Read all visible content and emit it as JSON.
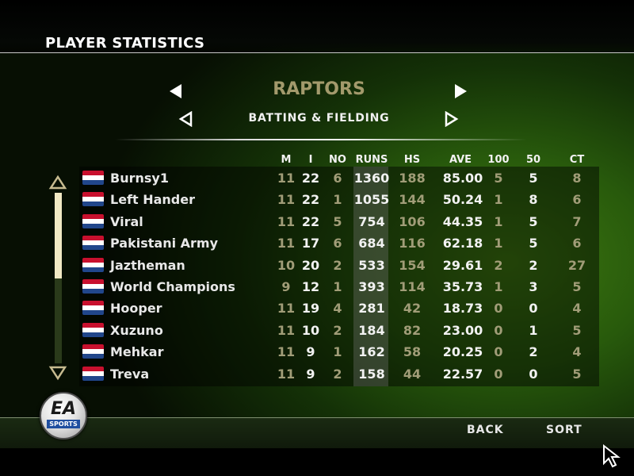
{
  "header": {
    "title": "PLAYER STATISTICS"
  },
  "team": {
    "name": "RAPTORS"
  },
  "category": {
    "label": "BATTING & FIELDING"
  },
  "columns": [
    "M",
    "I",
    "NO",
    "RUNS",
    "HS",
    "AVE",
    "100",
    "50",
    "CT"
  ],
  "players": [
    {
      "name": "Burnsy1",
      "m": "11",
      "i": "22",
      "no": "6",
      "runs": "1360",
      "hs": "188",
      "ave": "85.00",
      "h100": "5",
      "h50": "5",
      "ct": "8"
    },
    {
      "name": "Left Hander",
      "m": "11",
      "i": "22",
      "no": "1",
      "runs": "1055",
      "hs": "144",
      "ave": "50.24",
      "h100": "1",
      "h50": "8",
      "ct": "6"
    },
    {
      "name": "Viral",
      "m": "11",
      "i": "22",
      "no": "5",
      "runs": "754",
      "hs": "106",
      "ave": "44.35",
      "h100": "1",
      "h50": "5",
      "ct": "7"
    },
    {
      "name": "Pakistani Army",
      "m": "11",
      "i": "17",
      "no": "6",
      "runs": "684",
      "hs": "116",
      "ave": "62.18",
      "h100": "1",
      "h50": "5",
      "ct": "6"
    },
    {
      "name": "Jaztheman",
      "m": "10",
      "i": "20",
      "no": "2",
      "runs": "533",
      "hs": "154",
      "ave": "29.61",
      "h100": "2",
      "h50": "2",
      "ct": "27"
    },
    {
      "name": "World Champions",
      "m": "9",
      "i": "12",
      "no": "1",
      "runs": "393",
      "hs": "114",
      "ave": "35.73",
      "h100": "1",
      "h50": "3",
      "ct": "5"
    },
    {
      "name": "Hooper",
      "m": "11",
      "i": "19",
      "no": "4",
      "runs": "281",
      "hs": "42",
      "ave": "18.73",
      "h100": "0",
      "h50": "0",
      "ct": "4"
    },
    {
      "name": "Xuzuno",
      "m": "11",
      "i": "10",
      "no": "2",
      "runs": "184",
      "hs": "82",
      "ave": "23.00",
      "h100": "0",
      "h50": "1",
      "ct": "5"
    },
    {
      "name": "Mehkar",
      "m": "11",
      "i": "9",
      "no": "1",
      "runs": "162",
      "hs": "58",
      "ave": "20.25",
      "h100": "0",
      "h50": "2",
      "ct": "4"
    },
    {
      "name": "Treva",
      "m": "11",
      "i": "9",
      "no": "2",
      "runs": "158",
      "hs": "44",
      "ave": "22.57",
      "h100": "0",
      "h50": "0",
      "ct": "5"
    }
  ],
  "footer": {
    "back_label": "BACK",
    "sort_label": "SORT"
  },
  "logo": {
    "top": "EA",
    "bottom": "SPORTS"
  },
  "icons": {
    "team_prev": "triangle-left-icon",
    "team_next": "triangle-right-icon",
    "category_prev": "triangle-left-outline-icon",
    "category_next": "triangle-right-outline-icon",
    "scroll_up": "triangle-up-outline-icon",
    "scroll_down": "triangle-down-outline-icon",
    "flag": "netherlands-flag-icon",
    "cursor": "mouse-pointer-icon"
  },
  "colors": {
    "dim_value": "#a19d78",
    "bright_value": "#f2f2f2",
    "team_name": "#a39a6c"
  }
}
